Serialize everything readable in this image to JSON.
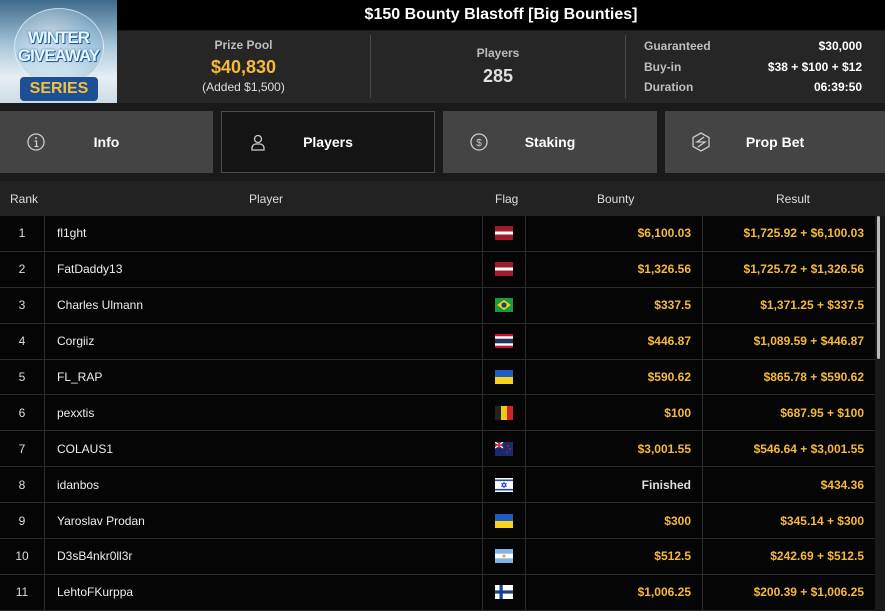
{
  "logo": {
    "line1": "WINTER",
    "line2": "GIVEAWAY",
    "line3": "SERIES"
  },
  "title": "$150 Bounty Blastoff [Big Bounties]",
  "stats": {
    "prize_pool_label": "Prize Pool",
    "prize_pool": "$40,830",
    "added": "(Added $1,500)",
    "players_label": "Players",
    "players": "285",
    "guaranteed_label": "Guaranteed",
    "guaranteed": "$30,000",
    "buyin_label": "Buy-in",
    "buyin": "$38 + $100 + $12",
    "duration_label": "Duration",
    "duration": "06:39:50"
  },
  "tabs": [
    {
      "label": "Info",
      "icon": "info-icon",
      "active": false
    },
    {
      "label": "Players",
      "icon": "user-icon",
      "active": true
    },
    {
      "label": "Staking",
      "icon": "dollar-coin-icon",
      "active": false
    },
    {
      "label": "Prop Bet",
      "icon": "prop-bet-icon",
      "active": false
    }
  ],
  "table": {
    "headers": {
      "rank": "Rank",
      "player": "Player",
      "flag": "Flag",
      "bounty": "Bounty",
      "result": "Result"
    },
    "rows": [
      {
        "rank": "1",
        "player": "fl1ght",
        "flag": "latvia",
        "bounty": "$6,100.03",
        "result": "$1,725.92 + $6,100.03"
      },
      {
        "rank": "2",
        "player": "FatDaddy13",
        "flag": "latvia",
        "bounty": "$1,326.56",
        "result": "$1,725.72 + $1,326.56"
      },
      {
        "rank": "3",
        "player": "Charles Ulmann",
        "flag": "brazil",
        "bounty": "$337.5",
        "result": "$1,371.25 + $337.5"
      },
      {
        "rank": "4",
        "player": "Corgiiz",
        "flag": "thailand",
        "bounty": "$446.87",
        "result": "$1,089.59 + $446.87"
      },
      {
        "rank": "5",
        "player": "FL_RAP",
        "flag": "ukraine",
        "bounty": "$590.62",
        "result": "$865.78 + $590.62"
      },
      {
        "rank": "6",
        "player": "pexxtis",
        "flag": "belgium",
        "bounty": "$100",
        "result": "$687.95 + $100"
      },
      {
        "rank": "7",
        "player": "COLAUS1",
        "flag": "new-zealand",
        "bounty": "$3,001.55",
        "result": "$546.64 + $3,001.55"
      },
      {
        "rank": "8",
        "player": "idanbos",
        "flag": "israel",
        "bounty": "Finished",
        "result": "$434.36"
      },
      {
        "rank": "9",
        "player": "Yaroslav Prodan",
        "flag": "ukraine",
        "bounty": "$300",
        "result": "$345.14 + $300"
      },
      {
        "rank": "10",
        "player": "D3sB4nkr0ll3r",
        "flag": "argentina",
        "bounty": "$512.5",
        "result": "$242.69 + $512.5"
      },
      {
        "rank": "11",
        "player": "LehtoFKurppa",
        "flag": "finland",
        "bounty": "$1,006.25",
        "result": "$200.39 + $1,006.25"
      }
    ]
  },
  "colors": {
    "accent": "#f6b93b",
    "tab": "#444444",
    "tab_active": "#141414"
  }
}
